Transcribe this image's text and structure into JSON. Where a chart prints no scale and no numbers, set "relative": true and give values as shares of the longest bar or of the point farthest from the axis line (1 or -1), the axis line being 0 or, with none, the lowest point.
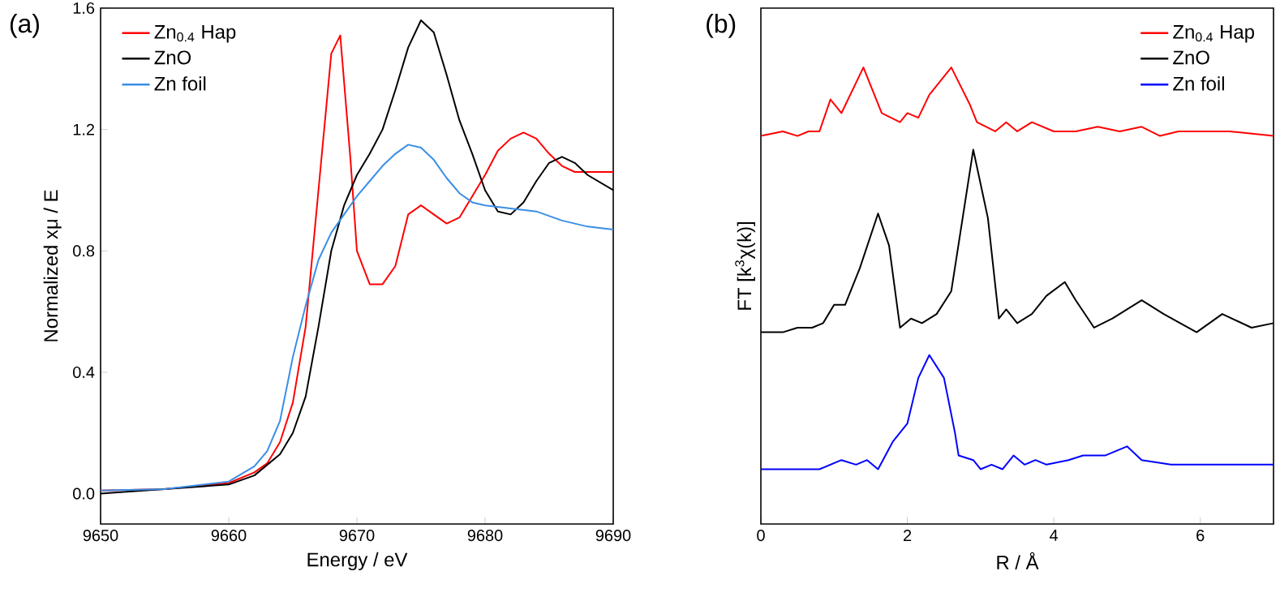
{
  "chart_data": [
    {
      "type": "line",
      "annotations": [
        "(a)"
      ],
      "xlabel": "Energy / eV",
      "ylabel": "Normalized xμ / E",
      "xlim": [
        9650,
        9690
      ],
      "ylim": [
        -0.1,
        1.6
      ],
      "xticks": [
        9650,
        9660,
        9670,
        9680,
        9690
      ],
      "yticks": [
        {
          "value": 0,
          "label": "0.0"
        },
        {
          "value": 0.4,
          "label": "0.4"
        },
        {
          "value": 0.8,
          "label": "0.8"
        },
        {
          "value": 1.2,
          "label": "1.2"
        },
        {
          "value": 1.6,
          "label": "1.6"
        }
      ],
      "legend": "top left",
      "grid": false,
      "marker": "none",
      "line_style": "solid",
      "series": [
        {
          "name": "Zn$_{0.4}$ Hap",
          "color": "#ff0000",
          "x": [
            9650,
            9655,
            9660,
            9662,
            9663,
            9664,
            9665,
            9666,
            9667,
            9668,
            9668.7,
            9669.5,
            9670,
            9671,
            9672,
            9673,
            9674,
            9675,
            9676,
            9677,
            9678,
            9679,
            9680,
            9681,
            9682,
            9683,
            9684,
            9685,
            9686,
            9687,
            9690
          ],
          "values": [
            0.01,
            0.015,
            0.035,
            0.07,
            0.1,
            0.17,
            0.3,
            0.55,
            1.0,
            1.45,
            1.51,
            1.1,
            0.8,
            0.69,
            0.69,
            0.75,
            0.92,
            0.95,
            0.92,
            0.89,
            0.91,
            0.98,
            1.05,
            1.13,
            1.17,
            1.19,
            1.17,
            1.12,
            1.08,
            1.06,
            1.06
          ]
        },
        {
          "name": "ZnO",
          "color": "#000000",
          "x": [
            9650,
            9655,
            9660,
            9662,
            9664,
            9665,
            9666,
            9667,
            9668,
            9669,
            9670,
            9671,
            9672,
            9673,
            9674,
            9675,
            9676,
            9677,
            9678,
            9679,
            9680,
            9681,
            9682,
            9683,
            9684,
            9685,
            9686,
            9687,
            9688,
            9690
          ],
          "values": [
            0.0,
            0.015,
            0.03,
            0.06,
            0.13,
            0.2,
            0.32,
            0.55,
            0.8,
            0.95,
            1.05,
            1.12,
            1.2,
            1.33,
            1.47,
            1.56,
            1.52,
            1.38,
            1.23,
            1.12,
            1.0,
            0.93,
            0.92,
            0.96,
            1.03,
            1.09,
            1.11,
            1.09,
            1.05,
            1.0
          ]
        },
        {
          "name": "Zn foil",
          "color": "#3a8ee6",
          "x": [
            9650,
            9655,
            9660,
            9662,
            9663,
            9664,
            9665,
            9666,
            9667,
            9668,
            9669,
            9670,
            9671,
            9672,
            9673,
            9674,
            9675,
            9676,
            9677,
            9678,
            9679,
            9680,
            9682,
            9684,
            9686,
            9688,
            9690
          ],
          "values": [
            0.01,
            0.015,
            0.04,
            0.09,
            0.14,
            0.24,
            0.45,
            0.62,
            0.77,
            0.86,
            0.92,
            0.98,
            1.03,
            1.08,
            1.12,
            1.15,
            1.14,
            1.1,
            1.04,
            0.99,
            0.96,
            0.95,
            0.94,
            0.93,
            0.9,
            0.88,
            0.87
          ]
        }
      ]
    },
    {
      "type": "line",
      "annotations": [
        "(b)"
      ],
      "xlabel": "R / Å",
      "ylabel": "FT [k$^{3}$χ(k)]",
      "relative": true,
      "xlim": [
        0,
        7
      ],
      "xticks": [
        0,
        2,
        4,
        6
      ],
      "tick_labels": "x",
      "legend": "top right",
      "grid": false,
      "marker": "none",
      "line_style": "solid",
      "series": [
        {
          "name": "Zn$_{0.4}$ Hap",
          "color": "#ff0000",
          "x": [
            0,
            0.3,
            0.5,
            0.65,
            0.8,
            0.95,
            1.1,
            1.4,
            1.65,
            1.9,
            2.0,
            2.15,
            2.3,
            2.6,
            2.85,
            2.95,
            3.2,
            3.35,
            3.5,
            3.7,
            4.0,
            4.3,
            4.6,
            4.9,
            5.2,
            5.45,
            5.7,
            6.0,
            6.4,
            7.0
          ],
          "values": [
            0.85,
            0.86,
            0.85,
            0.86,
            0.86,
            0.93,
            0.9,
            1.0,
            0.9,
            0.88,
            0.9,
            0.89,
            0.94,
            1.0,
            0.92,
            0.88,
            0.86,
            0.88,
            0.86,
            0.88,
            0.86,
            0.86,
            0.87,
            0.86,
            0.87,
            0.85,
            0.86,
            0.86,
            0.86,
            0.85
          ]
        },
        {
          "name": "ZnO",
          "color": "#000000",
          "x": [
            0,
            0.3,
            0.5,
            0.7,
            0.85,
            1.0,
            1.15,
            1.35,
            1.6,
            1.75,
            1.9,
            2.05,
            2.2,
            2.4,
            2.6,
            2.9,
            3.1,
            3.25,
            3.35,
            3.5,
            3.7,
            3.9,
            4.15,
            4.3,
            4.55,
            4.8,
            5.2,
            5.5,
            5.95,
            6.3,
            6.7,
            7.0
          ],
          "values": [
            0.42,
            0.42,
            0.43,
            0.43,
            0.44,
            0.48,
            0.48,
            0.56,
            0.68,
            0.61,
            0.43,
            0.45,
            0.44,
            0.46,
            0.51,
            0.82,
            0.67,
            0.45,
            0.47,
            0.44,
            0.46,
            0.5,
            0.53,
            0.49,
            0.43,
            0.45,
            0.49,
            0.46,
            0.42,
            0.46,
            0.43,
            0.44
          ]
        },
        {
          "name": "Zn foil",
          "color": "#0000ff",
          "x": [
            0,
            0.5,
            0.8,
            1.1,
            1.3,
            1.45,
            1.6,
            1.8,
            2.0,
            2.15,
            2.3,
            2.5,
            2.65,
            2.7,
            2.9,
            3.0,
            3.15,
            3.3,
            3.45,
            3.6,
            3.75,
            3.9,
            4.2,
            4.4,
            4.7,
            5.0,
            5.2,
            5.6,
            6.0,
            7.0
          ],
          "values": [
            0.12,
            0.12,
            0.12,
            0.14,
            0.13,
            0.14,
            0.12,
            0.18,
            0.22,
            0.32,
            0.37,
            0.32,
            0.2,
            0.15,
            0.14,
            0.12,
            0.13,
            0.12,
            0.15,
            0.13,
            0.14,
            0.13,
            0.14,
            0.15,
            0.15,
            0.17,
            0.14,
            0.13,
            0.13,
            0.13
          ]
        }
      ]
    }
  ]
}
